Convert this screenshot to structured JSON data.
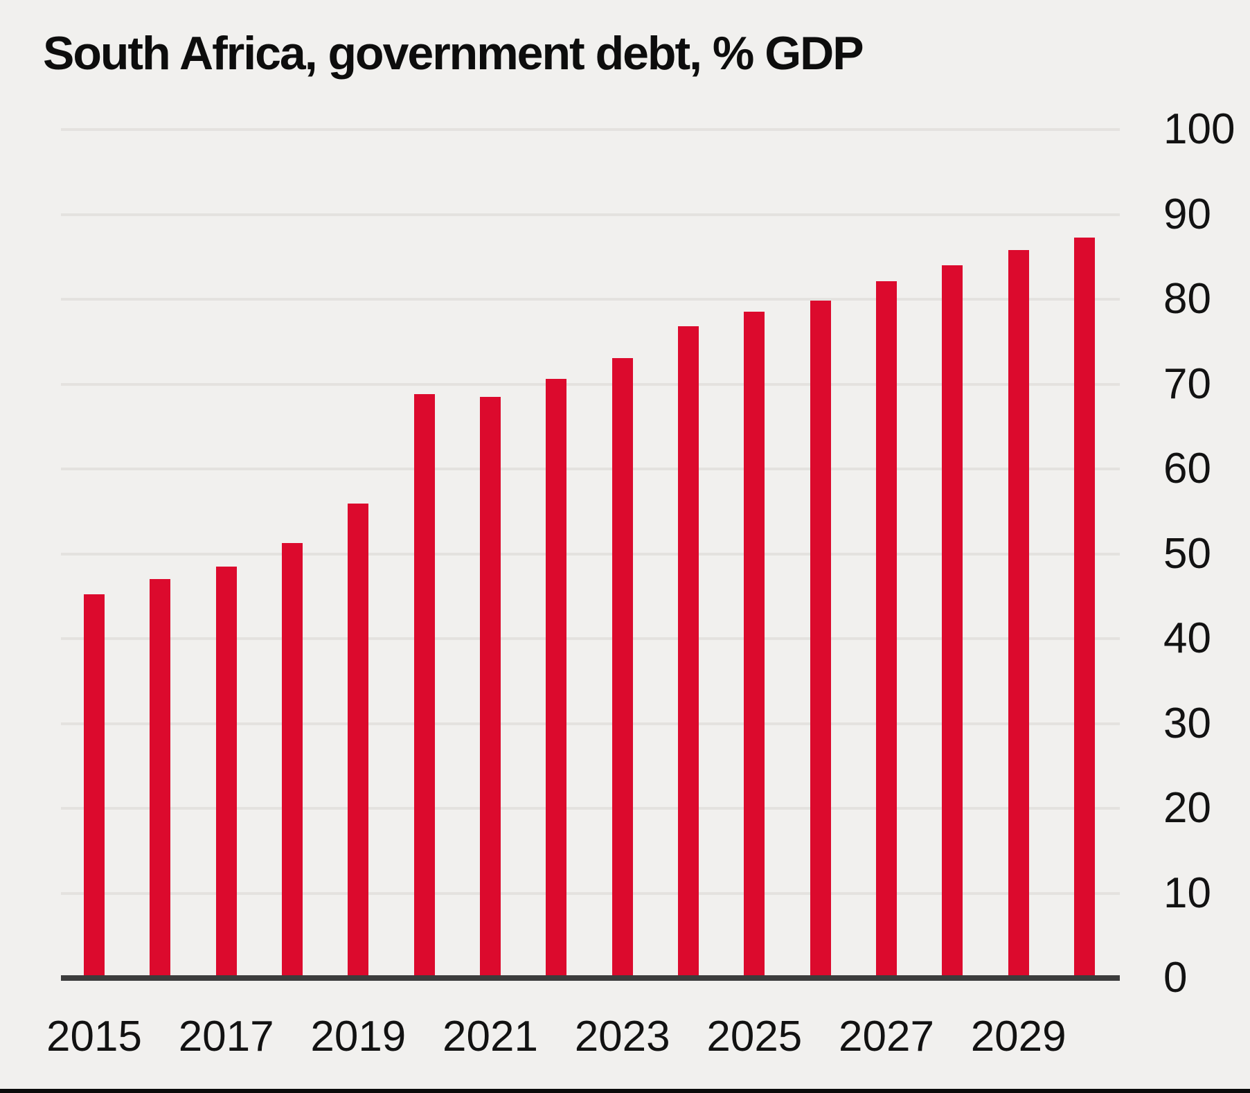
{
  "chart_data": {
    "type": "bar",
    "title": "South Africa, government debt, % GDP",
    "categories": [
      2015,
      2016,
      2017,
      2018,
      2019,
      2020,
      2021,
      2022,
      2023,
      2024,
      2025,
      2026,
      2027,
      2028,
      2029,
      2030
    ],
    "values": [
      45.2,
      47.0,
      48.5,
      51.3,
      55.9,
      68.8,
      68.5,
      70.6,
      73.1,
      76.8,
      78.5,
      79.8,
      82.1,
      84.0,
      85.8,
      87.3
    ],
    "x_tick_labels": [
      "2015",
      "2017",
      "2019",
      "2021",
      "2023",
      "2025",
      "2027",
      "2029"
    ],
    "y_ticks": [
      0,
      10,
      20,
      30,
      40,
      50,
      60,
      70,
      80,
      90,
      100
    ],
    "ylim": [
      0,
      100
    ],
    "grid": "horizontal",
    "legend": "none",
    "y_axis_side": "right",
    "colors": {
      "background": "#f1f0ee",
      "bar": "#dc0a2d",
      "gridline": "#e4e2df",
      "axis_line": "#3c3c3c",
      "text": "#121212",
      "title_text": "#0d0d0d",
      "bottom_rule": "#0a0a0a"
    }
  }
}
